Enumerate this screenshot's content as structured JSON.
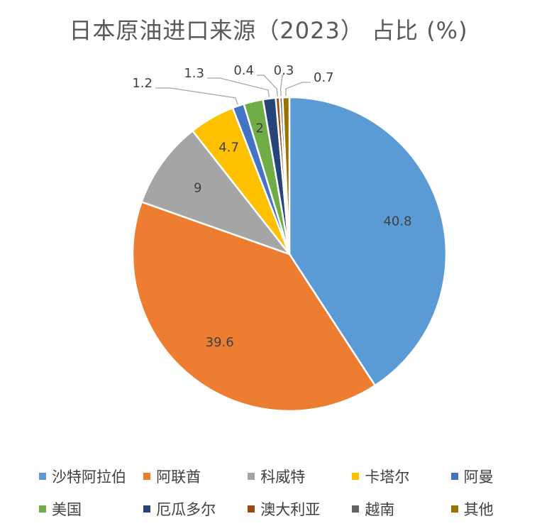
{
  "chart_data": {
    "type": "pie",
    "title": "日本原油进口来源（2023） 占比 (%)",
    "slices": [
      {
        "name": "沙特阿拉伯",
        "value": 40.8,
        "color": "#5B9BD5",
        "label": "40.8"
      },
      {
        "name": "阿联酋",
        "value": 39.6,
        "color": "#ED7D31",
        "label": "39.6"
      },
      {
        "name": "科威特",
        "value": 9,
        "color": "#A5A5A5",
        "label": "9"
      },
      {
        "name": "卡塔尔",
        "value": 4.7,
        "color": "#FFC000",
        "label": "4.7"
      },
      {
        "name": "阿曼",
        "value": 1.2,
        "color": "#4472C4",
        "label": "1.2"
      },
      {
        "name": "美国",
        "value": 2,
        "color": "#70AD47",
        "label": "2"
      },
      {
        "name": "厄瓜多尔",
        "value": 1.3,
        "color": "#264478",
        "label": "1.3"
      },
      {
        "name": "澳大利亚",
        "value": 0.4,
        "color": "#9E480E",
        "label": "0.4"
      },
      {
        "name": "越南",
        "value": 0.3,
        "color": "#636363",
        "label": "0.3"
      },
      {
        "name": "其他",
        "value": 0.7,
        "color": "#997300",
        "label": "0.7"
      }
    ],
    "legend_placement": "bottom"
  }
}
